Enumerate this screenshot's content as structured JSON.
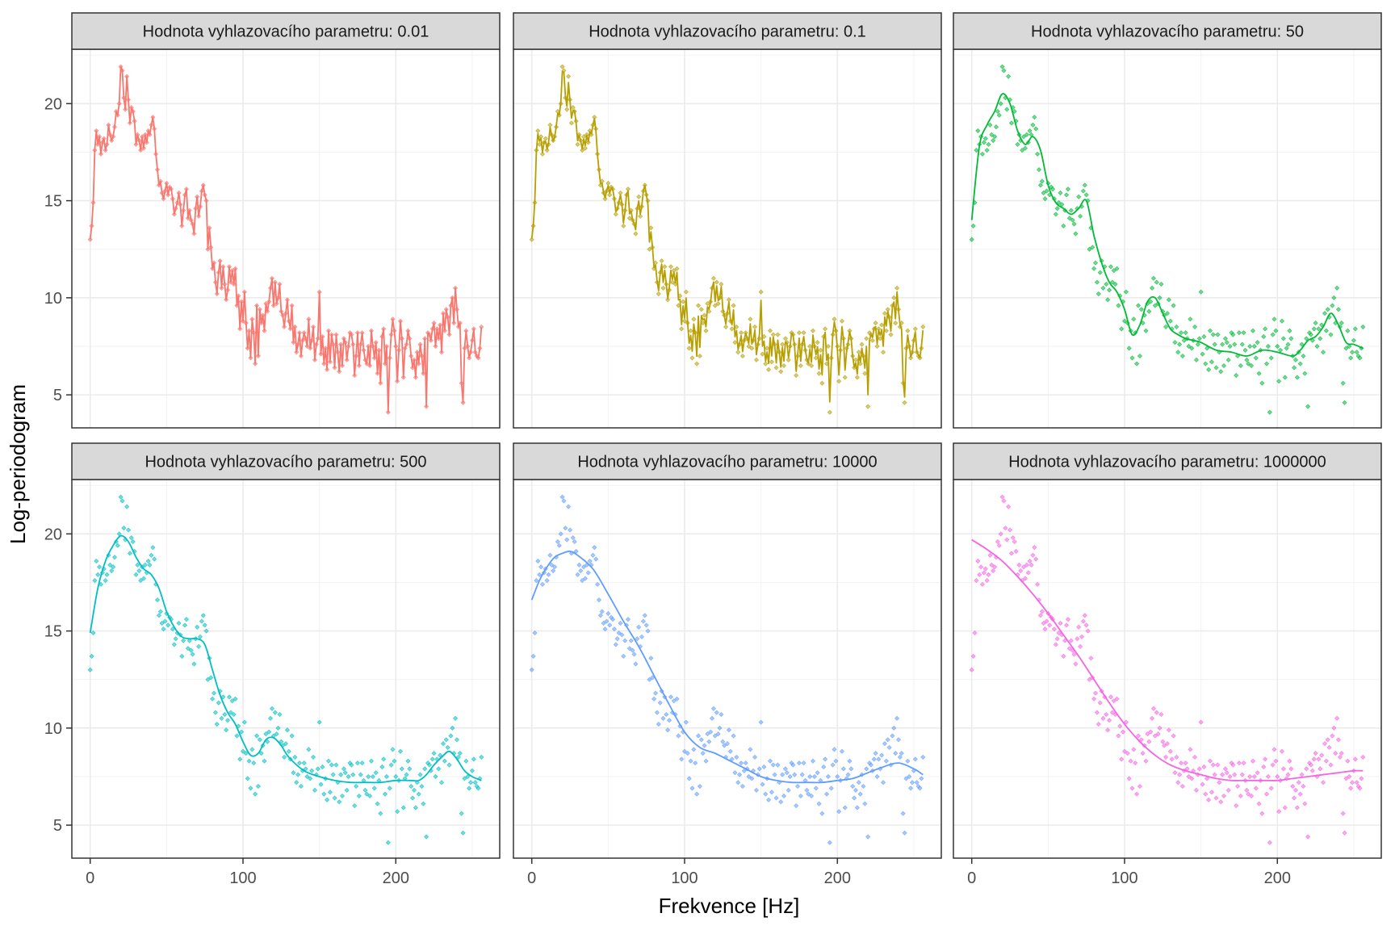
{
  "chart_data": {
    "type": "scatter",
    "layout": "facet-grid-2x3",
    "xlabel": "Frekvence [Hz]",
    "ylabel": "Log-periodogram",
    "xlim": [
      -12,
      268
    ],
    "ylim": [
      3.3,
      22.8
    ],
    "x_ticks": [
      0,
      100,
      200
    ],
    "x_tick_labels": [
      "0",
      "100",
      "200"
    ],
    "y_ticks": [
      5,
      10,
      15,
      20
    ],
    "y_tick_labels": [
      "5",
      "10",
      "15",
      "20"
    ],
    "grid": true,
    "legend": "none",
    "points_description": "log-periodogram points (same in every panel), x = 0..256 Hz",
    "points": [
      [
        0,
        13.0
      ],
      [
        1,
        13.7
      ],
      [
        2,
        14.9
      ],
      [
        3,
        17.6
      ],
      [
        4,
        18.6
      ],
      [
        5,
        17.9
      ],
      [
        6,
        18.3
      ],
      [
        7,
        17.4
      ],
      [
        8,
        18.0
      ],
      [
        9,
        18.2
      ],
      [
        10,
        17.6
      ],
      [
        11,
        17.9
      ],
      [
        12,
        18.9
      ],
      [
        13,
        18.4
      ],
      [
        14,
        18.1
      ],
      [
        15,
        18.3
      ],
      [
        16,
        18.8
      ],
      [
        17,
        19.6
      ],
      [
        18,
        19.4
      ],
      [
        19,
        20.0
      ],
      [
        20,
        21.9
      ],
      [
        21,
        21.7
      ],
      [
        22,
        20.3
      ],
      [
        23,
        19.7
      ],
      [
        24,
        21.4
      ],
      [
        25,
        20.2
      ],
      [
        26,
        19.0
      ],
      [
        27,
        19.8
      ],
      [
        28,
        19.6
      ],
      [
        29,
        19.1
      ],
      [
        30,
        17.9
      ],
      [
        31,
        18.4
      ],
      [
        32,
        18.1
      ],
      [
        33,
        17.6
      ],
      [
        34,
        18.3
      ],
      [
        35,
        17.7
      ],
      [
        36,
        18.4
      ],
      [
        37,
        18.0
      ],
      [
        38,
        18.6
      ],
      [
        39,
        18.4
      ],
      [
        40,
        18.9
      ],
      [
        41,
        19.3
      ],
      [
        42,
        18.7
      ],
      [
        43,
        17.4
      ],
      [
        44,
        16.6
      ],
      [
        45,
        15.8
      ],
      [
        46,
        16.0
      ],
      [
        47,
        15.4
      ],
      [
        48,
        15.1
      ],
      [
        49,
        15.5
      ],
      [
        50,
        15.9
      ],
      [
        51,
        15.3
      ],
      [
        52,
        15.7
      ],
      [
        53,
        15.6
      ],
      [
        54,
        15.1
      ],
      [
        55,
        14.3
      ],
      [
        56,
        14.6
      ],
      [
        57,
        14.9
      ],
      [
        58,
        15.4
      ],
      [
        59,
        14.8
      ],
      [
        60,
        13.7
      ],
      [
        61,
        14.5
      ],
      [
        62,
        15.3
      ],
      [
        63,
        15.6
      ],
      [
        64,
        14.1
      ],
      [
        65,
        14.5
      ],
      [
        66,
        14.0
      ],
      [
        67,
        13.8
      ],
      [
        68,
        13.3
      ],
      [
        69,
        14.6
      ],
      [
        70,
        15.2
      ],
      [
        71,
        14.2
      ],
      [
        72,
        14.7
      ],
      [
        73,
        15.5
      ],
      [
        74,
        15.8
      ],
      [
        75,
        15.3
      ],
      [
        76,
        15.0
      ],
      [
        77,
        12.5
      ],
      [
        78,
        13.6
      ],
      [
        79,
        12.6
      ],
      [
        80,
        11.5
      ],
      [
        81,
        11.8
      ],
      [
        82,
        10.8
      ],
      [
        83,
        10.2
      ],
      [
        84,
        11.3
      ],
      [
        85,
        11.9
      ],
      [
        86,
        10.5
      ],
      [
        87,
        11.6
      ],
      [
        88,
        10.7
      ],
      [
        89,
        9.9
      ],
      [
        90,
        10.4
      ],
      [
        91,
        11.6
      ],
      [
        92,
        10.8
      ],
      [
        93,
        11.4
      ],
      [
        94,
        10.7
      ],
      [
        95,
        11.5
      ],
      [
        96,
        9.6
      ],
      [
        97,
        10.1
      ],
      [
        98,
        8.4
      ],
      [
        99,
        9.8
      ],
      [
        100,
        8.8
      ],
      [
        101,
        10.3
      ],
      [
        102,
        8.7
      ],
      [
        103,
        7.4
      ],
      [
        104,
        8.3
      ],
      [
        105,
        6.9
      ],
      [
        106,
        8.9
      ],
      [
        107,
        8.2
      ],
      [
        108,
        6.6
      ],
      [
        109,
        9.6
      ],
      [
        110,
        7.0
      ],
      [
        111,
        9.4
      ],
      [
        112,
        8.7
      ],
      [
        113,
        9.1
      ],
      [
        114,
        8.3
      ],
      [
        115,
        9.7
      ],
      [
        116,
        9.3
      ],
      [
        117,
        9.8
      ],
      [
        118,
        10.5
      ],
      [
        119,
        11.0
      ],
      [
        120,
        9.6
      ],
      [
        121,
        10.8
      ],
      [
        122,
        9.7
      ],
      [
        123,
        10.0
      ],
      [
        124,
        10.7
      ],
      [
        125,
        9.3
      ],
      [
        126,
        9.1
      ],
      [
        127,
        8.5
      ],
      [
        128,
        9.2
      ],
      [
        129,
        9.9
      ],
      [
        130,
        8.8
      ],
      [
        131,
        8.4
      ],
      [
        132,
        9.6
      ],
      [
        133,
        7.7
      ],
      [
        134,
        8.5
      ],
      [
        135,
        7.2
      ],
      [
        136,
        7.6
      ],
      [
        137,
        8.2
      ],
      [
        138,
        7.0
      ],
      [
        139,
        7.8
      ],
      [
        140,
        8.2
      ],
      [
        141,
        7.9
      ],
      [
        142,
        7.5
      ],
      [
        143,
        8.9
      ],
      [
        144,
        7.4
      ],
      [
        145,
        7.8
      ],
      [
        146,
        8.5
      ],
      [
        147,
        6.8
      ],
      [
        148,
        7.6
      ],
      [
        149,
        7.9
      ],
      [
        150,
        10.3
      ],
      [
        151,
        7.1
      ],
      [
        152,
        8.0
      ],
      [
        153,
        6.6
      ],
      [
        154,
        7.4
      ],
      [
        155,
        6.3
      ],
      [
        156,
        8.3
      ],
      [
        157,
        6.7
      ],
      [
        158,
        8.1
      ],
      [
        159,
        7.6
      ],
      [
        160,
        6.4
      ],
      [
        161,
        8.1
      ],
      [
        162,
        7.2
      ],
      [
        163,
        6.2
      ],
      [
        164,
        7.6
      ],
      [
        165,
        6.5
      ],
      [
        166,
        7.9
      ],
      [
        167,
        7.7
      ],
      [
        168,
        6.8
      ],
      [
        169,
        7.5
      ],
      [
        170,
        8.2
      ],
      [
        171,
        8.1
      ],
      [
        172,
        7.6
      ],
      [
        173,
        6.0
      ],
      [
        174,
        7.0
      ],
      [
        175,
        8.2
      ],
      [
        176,
        6.5
      ],
      [
        177,
        7.6
      ],
      [
        178,
        8.2
      ],
      [
        179,
        7.3
      ],
      [
        180,
        6.8
      ],
      [
        181,
        6.6
      ],
      [
        182,
        7.5
      ],
      [
        183,
        6.5
      ],
      [
        184,
        8.3
      ],
      [
        185,
        7.5
      ],
      [
        186,
        6.9
      ],
      [
        187,
        7.7
      ],
      [
        188,
        6.1
      ],
      [
        189,
        7.3
      ],
      [
        190,
        5.6
      ],
      [
        191,
        8.0
      ],
      [
        192,
        8.4
      ],
      [
        193,
        6.6
      ],
      [
        194,
        7.5
      ],
      [
        195,
        4.1
      ],
      [
        196,
        6.9
      ],
      [
        197,
        8.1
      ],
      [
        198,
        8.9
      ],
      [
        199,
        8.3
      ],
      [
        200,
        7.5
      ],
      [
        201,
        5.7
      ],
      [
        202,
        7.3
      ],
      [
        203,
        8.8
      ],
      [
        204,
        7.9
      ],
      [
        205,
        5.9
      ],
      [
        206,
        7.4
      ],
      [
        207,
        7.6
      ],
      [
        208,
        8.3
      ],
      [
        209,
        7.9
      ],
      [
        210,
        7.0
      ],
      [
        211,
        6.4
      ],
      [
        212,
        6.8
      ],
      [
        213,
        5.9
      ],
      [
        214,
        7.2
      ],
      [
        215,
        6.6
      ],
      [
        216,
        7.6
      ],
      [
        217,
        7.0
      ],
      [
        218,
        6.1
      ],
      [
        219,
        7.9
      ],
      [
        220,
        4.4
      ],
      [
        221,
        8.2
      ],
      [
        222,
        8.1
      ],
      [
        223,
        7.8
      ],
      [
        224,
        8.4
      ],
      [
        225,
        8.7
      ],
      [
        226,
        7.5
      ],
      [
        227,
        8.4
      ],
      [
        228,
        7.9
      ],
      [
        229,
        8.6
      ],
      [
        230,
        7.2
      ],
      [
        231,
        9.2
      ],
      [
        232,
        8.3
      ],
      [
        233,
        9.4
      ],
      [
        234,
        9.0
      ],
      [
        235,
        8.1
      ],
      [
        236,
        9.6
      ],
      [
        237,
        10.0
      ],
      [
        238,
        8.7
      ],
      [
        239,
        10.5
      ],
      [
        240,
        9.4
      ],
      [
        241,
        8.5
      ],
      [
        242,
        8.7
      ],
      [
        243,
        5.6
      ],
      [
        244,
        4.6
      ],
      [
        245,
        7.4
      ],
      [
        246,
        8.3
      ],
      [
        247,
        7.5
      ],
      [
        248,
        6.9
      ],
      [
        249,
        7.2
      ],
      [
        250,
        7.8
      ],
      [
        251,
        8.4
      ],
      [
        252,
        7.2
      ],
      [
        253,
        7.0
      ],
      [
        254,
        6.9
      ],
      [
        255,
        7.4
      ],
      [
        256,
        8.5
      ]
    ],
    "panels": [
      {
        "title": "Hodnota vyhlazovacího parametru: 0.01",
        "color": "#F8766D",
        "line_mode": "interpolate"
      },
      {
        "title": "Hodnota vyhlazovacího parametru: 0.1",
        "color": "#B79F00",
        "line_mode": "near-interpolate"
      },
      {
        "title": "Hodnota vyhlazovacího parametru: 50",
        "color": "#00BA38",
        "line_x": [
          0,
          5,
          10,
          15,
          20,
          25,
          30,
          35,
          40,
          45,
          50,
          55,
          60,
          65,
          70,
          75,
          80,
          85,
          90,
          95,
          100,
          105,
          110,
          115,
          120,
          125,
          130,
          135,
          140,
          145,
          150,
          160,
          170,
          180,
          190,
          200,
          210,
          215,
          220,
          225,
          230,
          235,
          240,
          245,
          250,
          256
        ],
        "line_y": [
          14.0,
          17.8,
          18.9,
          19.6,
          20.5,
          20.0,
          18.6,
          17.9,
          18.3,
          17.6,
          15.8,
          14.9,
          14.6,
          14.3,
          14.6,
          15.0,
          13.2,
          11.8,
          10.8,
          10.3,
          9.4,
          8.1,
          8.6,
          9.8,
          10.0,
          9.2,
          8.4,
          8.1,
          7.9,
          7.8,
          7.7,
          7.3,
          7.2,
          7.0,
          7.3,
          7.2,
          7.0,
          7.3,
          7.8,
          8.0,
          8.5,
          9.2,
          8.6,
          7.7,
          7.6,
          7.4
        ]
      },
      {
        "title": "Hodnota vyhlazovacího parametru: 500",
        "color": "#00BFC4",
        "line_x": [
          0,
          5,
          10,
          15,
          20,
          25,
          30,
          35,
          40,
          45,
          50,
          55,
          60,
          65,
          70,
          75,
          80,
          85,
          90,
          95,
          100,
          105,
          110,
          115,
          120,
          125,
          130,
          140,
          150,
          160,
          170,
          180,
          190,
          200,
          210,
          215,
          220,
          225,
          230,
          235,
          240,
          245,
          250,
          256
        ],
        "line_y": [
          14.9,
          17.2,
          18.6,
          19.4,
          19.9,
          19.6,
          18.8,
          18.2,
          17.9,
          17.2,
          16.0,
          15.2,
          14.7,
          14.6,
          14.6,
          14.3,
          13.0,
          11.7,
          10.8,
          10.2,
          9.3,
          8.6,
          8.7,
          9.4,
          9.5,
          9.1,
          8.5,
          7.8,
          7.5,
          7.3,
          7.2,
          7.2,
          7.2,
          7.3,
          7.3,
          7.3,
          7.6,
          8.1,
          8.5,
          8.8,
          8.4,
          7.8,
          7.5,
          7.3
        ]
      },
      {
        "title": "Hodnota vyhlazovacího parametru: 10000",
        "color": "#619CFF",
        "line_x": [
          0,
          5,
          10,
          15,
          20,
          25,
          30,
          40,
          50,
          60,
          70,
          80,
          90,
          100,
          110,
          120,
          130,
          140,
          150,
          160,
          170,
          180,
          190,
          200,
          210,
          220,
          230,
          240,
          250,
          256
        ],
        "line_y": [
          16.6,
          17.6,
          18.3,
          18.8,
          19.0,
          19.1,
          18.9,
          18.2,
          16.9,
          15.5,
          14.2,
          12.7,
          11.2,
          9.8,
          9.0,
          8.7,
          8.3,
          7.9,
          7.5,
          7.3,
          7.2,
          7.2,
          7.2,
          7.3,
          7.4,
          7.7,
          8.0,
          8.2,
          7.9,
          7.6
        ]
      },
      {
        "title": "Hodnota vyhlazovacího parametru: 1000000",
        "color": "#F564E3",
        "line_x": [
          0,
          10,
          20,
          30,
          40,
          50,
          60,
          70,
          80,
          90,
          100,
          110,
          120,
          130,
          140,
          150,
          160,
          170,
          180,
          190,
          200,
          210,
          220,
          230,
          240,
          250,
          256
        ],
        "line_y": [
          19.7,
          19.2,
          18.6,
          17.8,
          16.9,
          15.9,
          14.8,
          13.7,
          12.5,
          11.3,
          10.2,
          9.3,
          8.6,
          8.1,
          7.8,
          7.6,
          7.4,
          7.3,
          7.3,
          7.3,
          7.3,
          7.4,
          7.5,
          7.6,
          7.7,
          7.8,
          7.8
        ]
      }
    ]
  }
}
